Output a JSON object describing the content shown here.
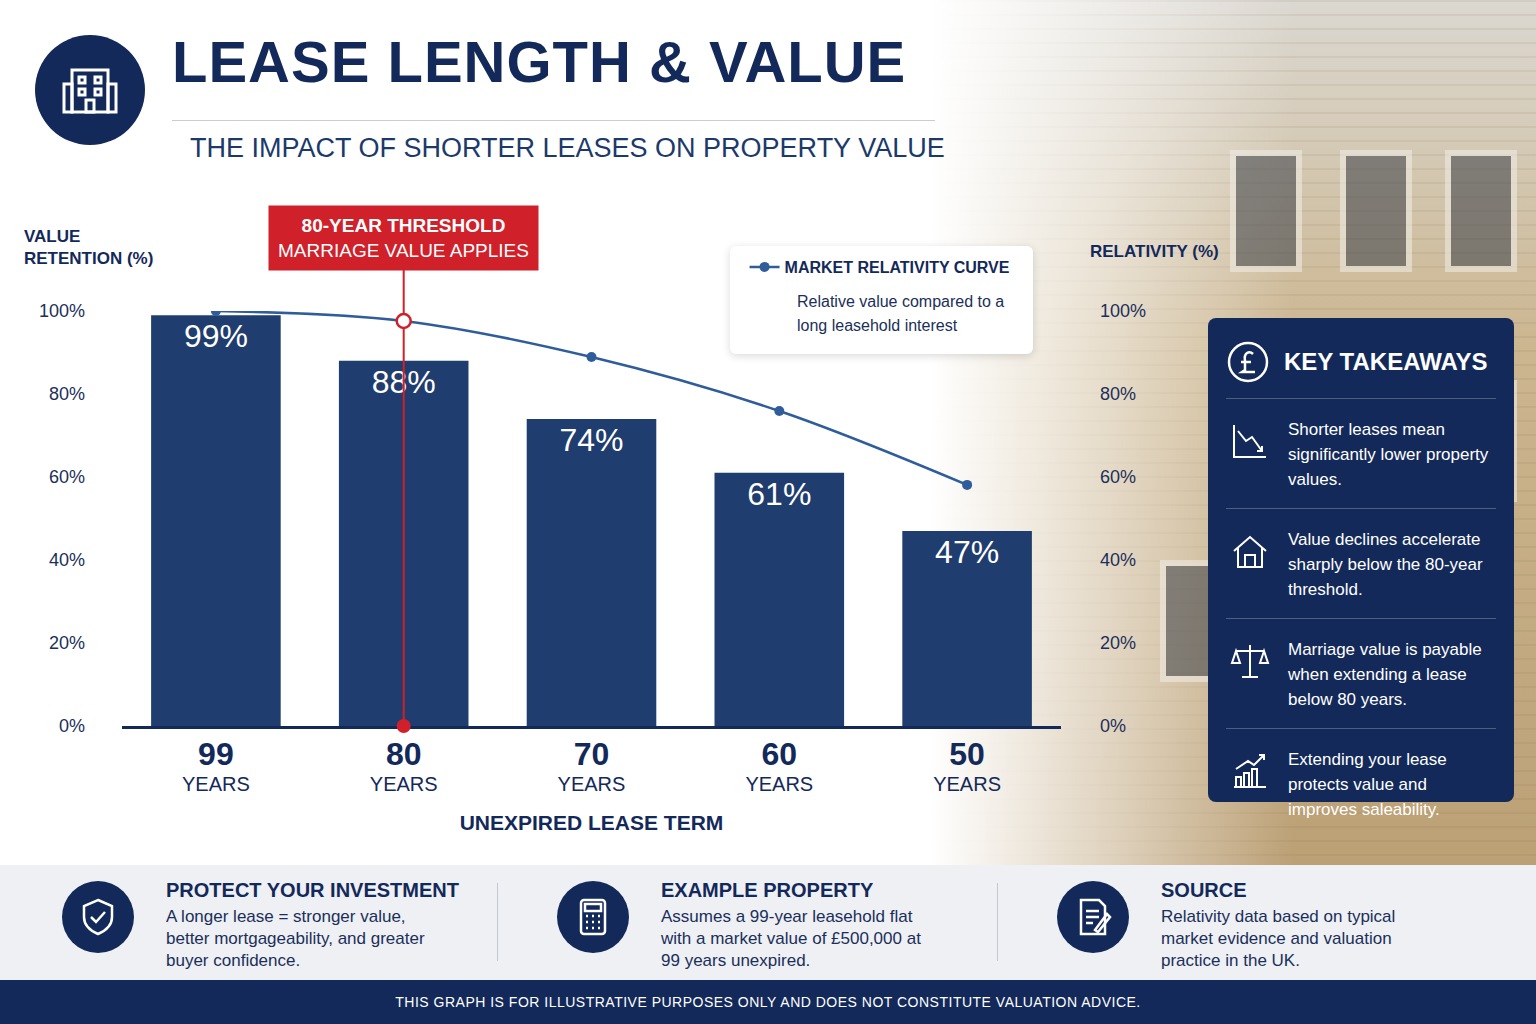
{
  "chart_data": {
    "type": "bar",
    "title": "LEASE LENGTH & VALUE",
    "subtitle": "THE IMPACT OF SHORTER LEASES ON PROPERTY VALUE",
    "x_label": "UNEXPIRED LEASE TERM",
    "y_label": "VALUE RETENTION (%)",
    "y2_label": "RELATIVITY (%)",
    "categories": [
      "99 YEARS",
      "80 YEARS",
      "70 YEARS",
      "60 YEARS",
      "50 YEARS"
    ],
    "values": [
      99,
      88,
      74,
      61,
      47
    ],
    "value_labels": [
      "99%",
      "88%",
      "74%",
      "61%",
      "47%"
    ],
    "data_labels": true,
    "color": "#1f3d6e",
    "series": [
      {
        "name": "MARKET RELATIVITY CURVE",
        "type": "line",
        "axis": "y2",
        "color": "#2f5d9b",
        "marker": "circle",
        "values": [
          100,
          97.6,
          88.9,
          75.9,
          58.1
        ]
      }
    ],
    "legend": "top",
    "legend_note": "Relative value compared to a long leasehold interest",
    "annotations": [
      {
        "at": "80 YEARS",
        "lines": [
          "80-YEAR THRESHOLD",
          "MARRIAGE VALUE APPLIES"
        ],
        "color": "#d0202a"
      }
    ],
    "ylim": [
      0,
      100
    ],
    "yticks": [
      {
        "value": 0,
        "label": "0%"
      },
      {
        "value": 20,
        "label": "20%"
      },
      {
        "value": 40,
        "label": "40%"
      },
      {
        "value": 60,
        "label": "60%"
      },
      {
        "value": 80,
        "label": "80%"
      },
      {
        "value": 100,
        "label": "100%"
      }
    ],
    "y2lim": [
      0,
      100
    ],
    "y2ticks": [
      {
        "value": 0,
        "label": "0%"
      },
      {
        "value": 20,
        "label": "20%"
      },
      {
        "value": 40,
        "label": "40%"
      },
      {
        "value": 60,
        "label": "60%"
      },
      {
        "value": 80,
        "label": "80%"
      },
      {
        "value": 100,
        "label": "100%"
      }
    ],
    "grid": false
  },
  "key_takeaways": {
    "title": "KEY TAKEAWAYS",
    "items": [
      "Shorter leases mean significantly lower property values.",
      "Value declines accelerate sharply below the 80-year threshold.",
      "Marriage value is payable when extending a lease below 80 years.",
      "Extending your lease protects value and improves saleability."
    ]
  },
  "footer_items": [
    {
      "title": "PROTECT YOUR INVESTMENT",
      "text": "A longer lease = stronger value, better mortgageability, and greater buyer confidence."
    },
    {
      "title": "EXAMPLE PROPERTY",
      "text": "Assumes a 99-year leasehold flat with a market value of £500,000 at 99 years unexpired."
    },
    {
      "title": "SOURCE",
      "text": "Relativity data based on typical market evidence and valuation practice in the UK."
    }
  ],
  "disclaimer": "THIS GRAPH IS FOR ILLUSTRATIVE PURPOSES ONLY AND DOES NOT CONSTITUTE VALUATION ADVICE."
}
